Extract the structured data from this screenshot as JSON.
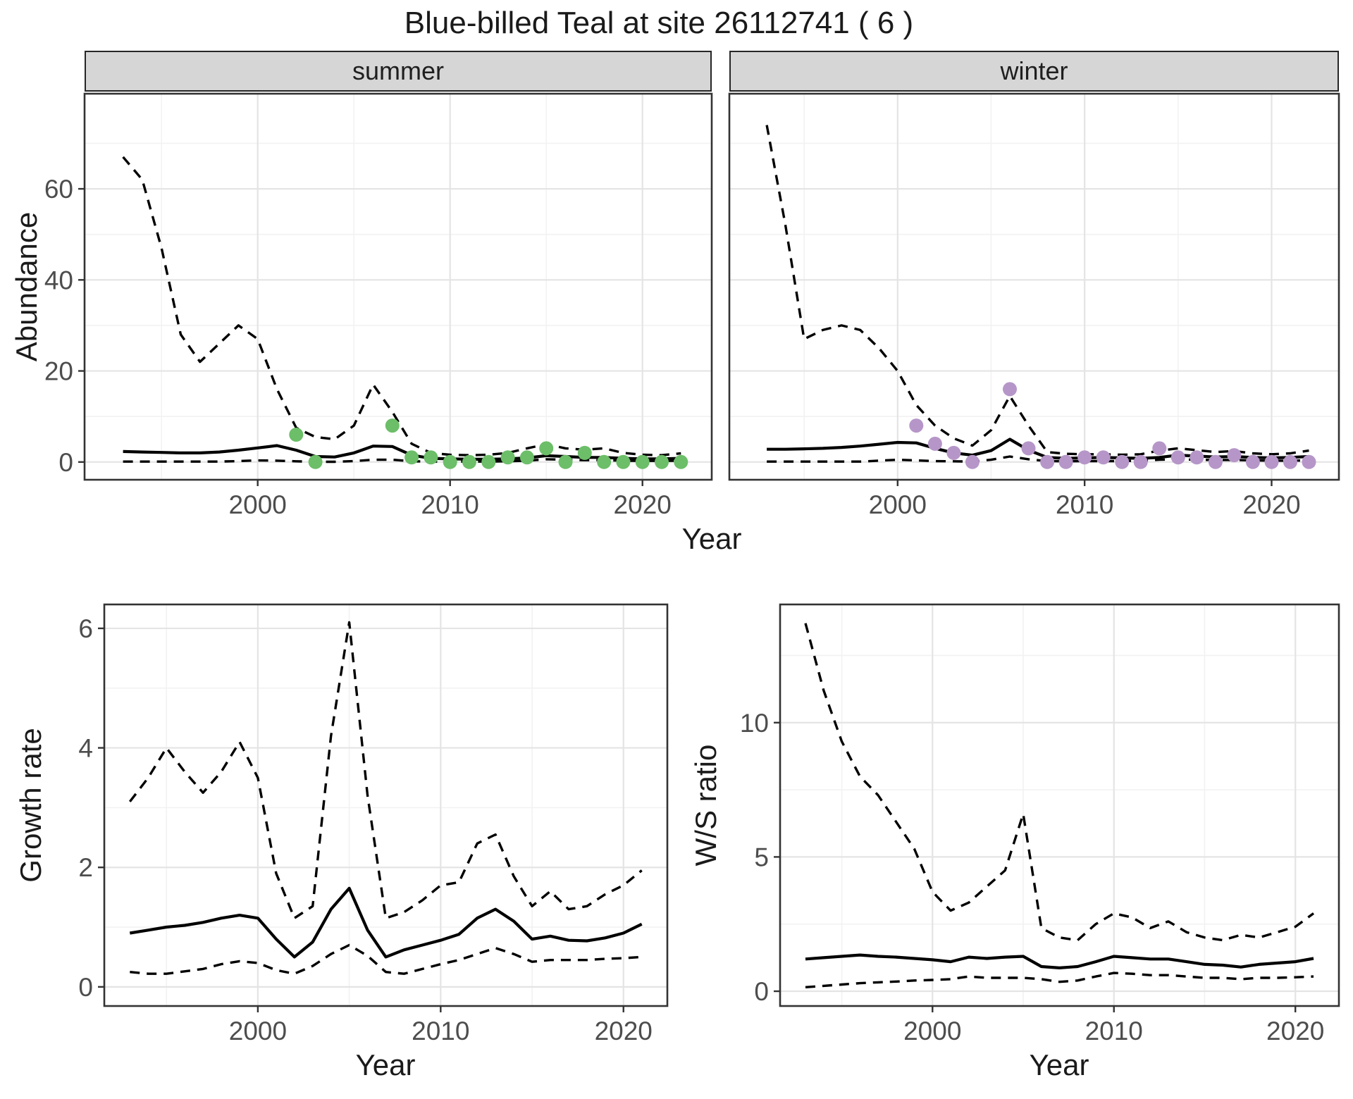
{
  "title": "Blue-billed Teal at site 26112741 ( 6 )",
  "facets": {
    "summer_label": "summer",
    "winter_label": "winter"
  },
  "axis_titles": {
    "abundance": "Abundance",
    "year_top": "Year",
    "growth_rate": "Growth rate",
    "ws_ratio": "W/S ratio",
    "year_bottom_left": "Year",
    "year_bottom_right": "Year"
  },
  "colors": {
    "summer_point": "#6CBE68",
    "winter_point": "#B696C8",
    "line": "#000000",
    "grid_major": "#E4E4E4",
    "grid_minor": "#F2F2F2",
    "strip_bg": "#D6D6D6",
    "panel_border": "#333333",
    "tick_label": "#4D4D4D",
    "title_text": "#1A1A1A"
  },
  "chart_data": [
    {
      "id": "summer",
      "type": "line",
      "title": "Abundance (summer facet)",
      "xlabel": "Year",
      "ylabel": "Abundance",
      "x": [
        1993,
        1994,
        1995,
        1996,
        1997,
        1998,
        1999,
        2000,
        2001,
        2002,
        2003,
        2004,
        2005,
        2006,
        2007,
        2008,
        2009,
        2010,
        2011,
        2012,
        2013,
        2014,
        2015,
        2016,
        2017,
        2018,
        2019,
        2020,
        2021,
        2022
      ],
      "series": [
        {
          "name": "mean",
          "style": "solid",
          "values": [
            2.3,
            2.2,
            2.1,
            2.0,
            2.0,
            2.2,
            2.6,
            3.1,
            3.6,
            2.6,
            1.2,
            1.1,
            2.0,
            3.5,
            3.4,
            1.5,
            0.8,
            0.7,
            0.6,
            0.6,
            0.7,
            0.9,
            1.4,
            1.2,
            1.0,
            1.0,
            0.8,
            0.7,
            0.7,
            0.8
          ]
        },
        {
          "name": "lower_ci",
          "style": "dashed",
          "values": [
            0.1,
            0.1,
            0.1,
            0.1,
            0.1,
            0.1,
            0.2,
            0.35,
            0.3,
            0.15,
            0.05,
            0.05,
            0.2,
            0.5,
            0.5,
            0.15,
            0.1,
            0.1,
            0.1,
            0.1,
            0.15,
            0.3,
            0.6,
            0.5,
            0.4,
            0.4,
            0.3,
            0.25,
            0.25,
            0.3
          ]
        },
        {
          "name": "upper_ci",
          "style": "dashed",
          "values": [
            67,
            62,
            47,
            28,
            22,
            26,
            30,
            27,
            16,
            7.5,
            5.5,
            5.0,
            8.0,
            17,
            11,
            4.0,
            2.0,
            1.6,
            1.5,
            1.6,
            2.0,
            3.0,
            3.9,
            3.0,
            2.7,
            3.0,
            2.0,
            1.6,
            1.5,
            1.9
          ]
        }
      ],
      "observations": {
        "x": [
          2002,
          2003,
          2007,
          2008,
          2009,
          2010,
          2011,
          2012,
          2013,
          2014,
          2015,
          2016,
          2017,
          2018,
          2019,
          2020,
          2021,
          2022
        ],
        "y": [
          6,
          0,
          8,
          1,
          1,
          0,
          0,
          0,
          1,
          1,
          3,
          0,
          2,
          0,
          0,
          0,
          0,
          0
        ],
        "color_key": "summer_point"
      },
      "xlim": [
        1991,
        2023.6
      ],
      "ylim": [
        -3.9,
        80.9
      ],
      "xticks": [
        2000,
        2010,
        2020
      ],
      "xminor": [
        1995,
        2005,
        2015
      ],
      "yticks": [
        0,
        20,
        40,
        60
      ],
      "yminor": [
        10,
        30,
        50,
        70
      ],
      "grid": true,
      "legend": "none"
    },
    {
      "id": "winter",
      "type": "line",
      "title": "Abundance (winter facet)",
      "xlabel": "Year",
      "ylabel": "Abundance",
      "x": [
        1993,
        1994,
        1995,
        1996,
        1997,
        1998,
        1999,
        2000,
        2001,
        2002,
        2003,
        2004,
        2005,
        2006,
        2007,
        2008,
        2009,
        2010,
        2011,
        2012,
        2013,
        2014,
        2015,
        2016,
        2017,
        2018,
        2019,
        2020,
        2021,
        2022
      ],
      "series": [
        {
          "name": "mean",
          "style": "solid",
          "values": [
            2.8,
            2.8,
            2.9,
            3.0,
            3.2,
            3.5,
            3.9,
            4.3,
            4.2,
            3.0,
            2.0,
            1.5,
            2.5,
            5.0,
            2.6,
            1.0,
            0.8,
            0.9,
            1.0,
            0.9,
            0.8,
            1.0,
            1.5,
            1.3,
            1.1,
            1.2,
            1.0,
            0.9,
            1.0,
            1.2
          ]
        },
        {
          "name": "lower_ci",
          "style": "dashed",
          "values": [
            0.1,
            0.1,
            0.1,
            0.1,
            0.1,
            0.1,
            0.3,
            0.5,
            0.35,
            0.2,
            0.15,
            0.1,
            0.5,
            1.2,
            0.6,
            0.2,
            0.15,
            0.2,
            0.2,
            0.2,
            0.3,
            0.5,
            0.6,
            0.5,
            0.45,
            0.45,
            0.35,
            0.3,
            0.3,
            0.35
          ]
        },
        {
          "name": "upper_ci",
          "style": "dashed",
          "values": [
            74,
            52,
            27,
            29,
            30,
            29,
            25,
            20,
            12.5,
            8.0,
            5.2,
            3.6,
            7.0,
            14.5,
            8.0,
            2.2,
            1.8,
            1.7,
            1.7,
            1.6,
            1.7,
            2.5,
            3.0,
            2.6,
            2.2,
            2.4,
            1.9,
            1.7,
            1.9,
            2.5
          ]
        }
      ],
      "observations": {
        "x": [
          2001,
          2002,
          2003,
          2004,
          2006,
          2007,
          2008,
          2009,
          2010,
          2011,
          2012,
          2013,
          2014,
          2015,
          2016,
          2017,
          2018,
          2019,
          2020,
          2021,
          2022
        ],
        "y": [
          8,
          4,
          2,
          0,
          16,
          3,
          0,
          0,
          1,
          1,
          0,
          0,
          3,
          1,
          1,
          0,
          1.5,
          0,
          0,
          0,
          0
        ],
        "color_key": "winter_point"
      },
      "xlim": [
        1991,
        2023.6
      ],
      "ylim": [
        -3.9,
        80.9
      ],
      "xticks": [
        2000,
        2010,
        2020
      ],
      "xminor": [
        1995,
        2005,
        2015
      ],
      "yticks": [],
      "yminor": [
        10,
        30,
        50,
        70
      ],
      "grid": true,
      "legend": "none"
    },
    {
      "id": "growth",
      "type": "line",
      "title": "Growth rate",
      "xlabel": "Year",
      "ylabel": "Growth rate",
      "x": [
        1993,
        1994,
        1995,
        1996,
        1997,
        1998,
        1999,
        2000,
        2001,
        2002,
        2003,
        2004,
        2005,
        2006,
        2007,
        2008,
        2009,
        2010,
        2011,
        2012,
        2013,
        2014,
        2015,
        2016,
        2017,
        2018,
        2019,
        2020,
        2021
      ],
      "series": [
        {
          "name": "mean",
          "style": "solid",
          "values": [
            0.9,
            0.95,
            1.0,
            1.03,
            1.08,
            1.15,
            1.2,
            1.15,
            0.8,
            0.5,
            0.75,
            1.3,
            1.65,
            0.95,
            0.5,
            0.62,
            0.7,
            0.78,
            0.88,
            1.15,
            1.3,
            1.1,
            0.8,
            0.85,
            0.78,
            0.77,
            0.82,
            0.9,
            1.05
          ]
        },
        {
          "name": "lower_ci",
          "style": "dashed",
          "values": [
            0.25,
            0.22,
            0.22,
            0.26,
            0.3,
            0.38,
            0.43,
            0.4,
            0.28,
            0.22,
            0.35,
            0.55,
            0.7,
            0.52,
            0.25,
            0.22,
            0.3,
            0.38,
            0.45,
            0.55,
            0.65,
            0.55,
            0.42,
            0.45,
            0.45,
            0.45,
            0.47,
            0.48,
            0.5
          ]
        },
        {
          "name": "upper_ci",
          "style": "dashed",
          "values": [
            3.1,
            3.5,
            4.0,
            3.6,
            3.25,
            3.6,
            4.1,
            3.5,
            1.9,
            1.15,
            1.35,
            4.2,
            6.1,
            3.2,
            1.15,
            1.25,
            1.45,
            1.7,
            1.75,
            2.4,
            2.55,
            1.85,
            1.35,
            1.6,
            1.3,
            1.35,
            1.55,
            1.7,
            1.95
          ]
        }
      ],
      "xlim": [
        1991.6,
        2022.4
      ],
      "ylim": [
        -0.32,
        6.4
      ],
      "xticks": [
        2000,
        2010,
        2020
      ],
      "xminor": [
        1995,
        2005,
        2015
      ],
      "yticks": [
        0,
        2,
        4,
        6
      ],
      "yminor": [
        1,
        3,
        5
      ],
      "grid": true,
      "legend": "none"
    },
    {
      "id": "ws",
      "type": "line",
      "title": "W/S ratio",
      "xlabel": "Year",
      "ylabel": "W/S ratio",
      "x": [
        1993,
        1994,
        1995,
        1996,
        1997,
        1998,
        1999,
        2000,
        2001,
        2002,
        2003,
        2004,
        2005,
        2006,
        2007,
        2008,
        2009,
        2010,
        2011,
        2012,
        2013,
        2014,
        2015,
        2016,
        2017,
        2018,
        2019,
        2020,
        2021
      ],
      "series": [
        {
          "name": "mean",
          "style": "solid",
          "values": [
            1.2,
            1.25,
            1.3,
            1.35,
            1.3,
            1.27,
            1.22,
            1.17,
            1.1,
            1.27,
            1.22,
            1.27,
            1.3,
            0.92,
            0.87,
            0.92,
            1.1,
            1.3,
            1.25,
            1.2,
            1.2,
            1.1,
            1.0,
            0.97,
            0.9,
            1.0,
            1.05,
            1.1,
            1.22
          ]
        },
        {
          "name": "lower_ci",
          "style": "dashed",
          "values": [
            0.15,
            0.2,
            0.25,
            0.3,
            0.33,
            0.36,
            0.4,
            0.42,
            0.45,
            0.55,
            0.5,
            0.5,
            0.5,
            0.45,
            0.35,
            0.4,
            0.55,
            0.68,
            0.65,
            0.6,
            0.6,
            0.55,
            0.5,
            0.5,
            0.45,
            0.5,
            0.5,
            0.52,
            0.55
          ]
        },
        {
          "name": "upper_ci",
          "style": "dashed",
          "values": [
            13.7,
            11.2,
            9.3,
            8.0,
            7.3,
            6.3,
            5.3,
            3.7,
            3.0,
            3.3,
            3.9,
            4.5,
            6.6,
            2.35,
            2.0,
            1.9,
            2.5,
            2.9,
            2.75,
            2.35,
            2.6,
            2.2,
            2.0,
            1.9,
            2.1,
            2.0,
            2.2,
            2.4,
            2.9
          ]
        }
      ],
      "xlim": [
        1991.6,
        2022.4
      ],
      "ylim": [
        -0.55,
        14.4
      ],
      "xticks": [
        2000,
        2010,
        2020
      ],
      "xminor": [
        1995,
        2005,
        2015
      ],
      "yticks": [
        0,
        5,
        10
      ],
      "yminor": [
        2.5,
        7.5,
        12.5
      ],
      "grid": true,
      "legend": "none"
    }
  ]
}
